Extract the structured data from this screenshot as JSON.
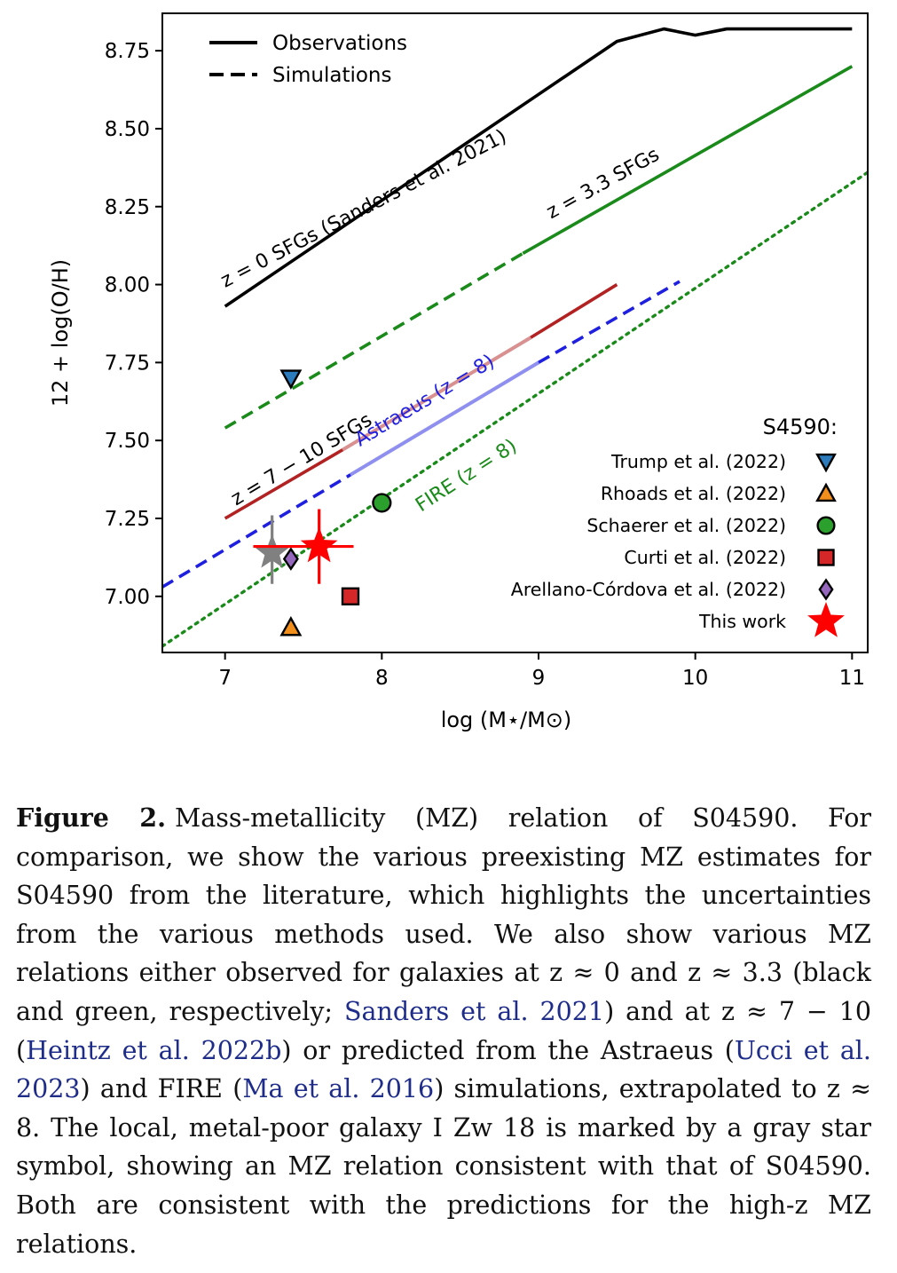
{
  "chart_data": {
    "type": "line",
    "xlabel": "log (M⋆/M⊙)",
    "ylabel": "12 + log(O/H)",
    "xlim": [
      6.6,
      11.1
    ],
    "ylim": [
      6.82,
      8.87
    ],
    "xticks": [
      "7",
      "8",
      "9",
      "10",
      "11"
    ],
    "yticks": [
      "7.00",
      "7.25",
      "7.50",
      "7.75",
      "8.00",
      "8.25",
      "8.50",
      "8.75"
    ],
    "style_legend": [
      {
        "label": "Observations",
        "style": "solid"
      },
      {
        "label": "Simulations",
        "style": "dashed"
      }
    ],
    "series": [
      {
        "name": "z = 0 SFGs (Sanders et al. 2021)",
        "color": "#000000",
        "style": "solid",
        "x": [
          7.0,
          7.5,
          8.0,
          8.5,
          9.0,
          9.5,
          9.8,
          10.0,
          10.2,
          10.4,
          10.6,
          10.8,
          11.0
        ],
        "y": [
          7.93,
          8.1,
          8.27,
          8.44,
          8.61,
          8.78,
          8.82,
          8.8,
          8.82,
          8.82,
          8.82,
          8.82,
          8.82
        ]
      },
      {
        "name": "z = 3.3 SFGs",
        "color": "#1a8a1a",
        "segments": [
          {
            "style": "dashed",
            "x": [
              7.0,
              8.9
            ],
            "y": [
              7.54,
              8.1
            ]
          },
          {
            "style": "solid",
            "x": [
              8.9,
              11.0
            ],
            "y": [
              8.1,
              8.7
            ]
          }
        ]
      },
      {
        "name": "z = 7 − 10 SFGs",
        "color": "#b22222",
        "segments": [
          {
            "style": "solid",
            "x": [
              7.0,
              7.75
            ],
            "y": [
              7.25,
              7.47
            ]
          },
          {
            "style": "faded",
            "x": [
              7.75,
              8.95
            ],
            "y": [
              7.47,
              7.83
            ]
          },
          {
            "style": "solid",
            "x": [
              8.95,
              9.5
            ],
            "y": [
              7.83,
              8.0
            ]
          }
        ]
      },
      {
        "name": "Astraeus (z = 8)",
        "color": "#1f1fe0",
        "segments": [
          {
            "style": "dashed",
            "x": [
              6.6,
              7.8
            ],
            "y": [
              7.03,
              7.39
            ]
          },
          {
            "style": "faded",
            "x": [
              7.8,
              9.0
            ],
            "y": [
              7.39,
              7.75
            ]
          },
          {
            "style": "dashed",
            "x": [
              9.0,
              9.9
            ],
            "y": [
              7.75,
              8.01
            ]
          }
        ]
      },
      {
        "name": "FIRE (z = 8)",
        "color": "#1a8a1a",
        "style": "dotted",
        "x": [
          6.6,
          11.1
        ],
        "y": [
          6.84,
          8.36
        ]
      }
    ],
    "points_legend_title": "S4590:",
    "points": [
      {
        "label": "Trump et al. (2022)",
        "marker": "triangle-down",
        "color": "#2b7bbd",
        "x": 7.42,
        "y": 7.7
      },
      {
        "label": "Rhoads et al. (2022)",
        "marker": "triangle-up",
        "color": "#f28e1c",
        "x": 7.42,
        "y": 6.9
      },
      {
        "label": "Schaerer et al. (2022)",
        "marker": "circle",
        "color": "#2ca02c",
        "x": 8.0,
        "y": 7.3
      },
      {
        "label": "Curti et al. (2022)",
        "marker": "square",
        "color": "#d62728",
        "x": 7.8,
        "y": 7.0
      },
      {
        "label": "Arellano-Córdova et al. (2022)",
        "marker": "diamond",
        "color": "#9467bd",
        "x": 7.42,
        "y": 7.12
      },
      {
        "label": "This work",
        "marker": "star",
        "color": "#ff0000",
        "x": 7.6,
        "y": 7.16,
        "xerr": [
          0.42,
          0.22
        ],
        "yerr": [
          0.12,
          0.12
        ]
      }
    ],
    "extra_points": [
      {
        "label": "",
        "marker": "star",
        "color": "#808080",
        "x": 7.3,
        "y": 7.14,
        "xerr": [
          0.0,
          0.0
        ],
        "yerr": [
          0.1,
          0.12
        ]
      }
    ],
    "annotations": [
      {
        "text": "z = 0 SFGs (Sanders et al. 2021)",
        "color": "#000000",
        "x": 7.0,
        "y": 7.99,
        "angle": -27.5
      },
      {
        "text": "z = 3.3 SFGs",
        "color": "#000000",
        "x": 9.08,
        "y": 8.21,
        "angle": -29
      },
      {
        "text": "z = 7 − 10 SFGs",
        "color": "#000000",
        "x": 7.07,
        "y": 7.29,
        "angle": -31
      },
      {
        "text": "Astraeus (z = 8)",
        "color": "#1f1fe0",
        "x": 7.86,
        "y": 7.48,
        "angle": -31
      },
      {
        "text": "FIRE (z = 8)",
        "color": "#1a8a1a",
        "x": 8.25,
        "y": 7.27,
        "angle": -33
      }
    ]
  },
  "caption": {
    "label": "Figure 2.",
    "segments": [
      {
        "text": "Mass-metallicity (MZ) relation of S04590. For comparison, we show the various preexisting MZ estimates for S04590 from the literature, which highlights the uncertainties from the various methods used. We also show various MZ relations either observed for galaxies at z ≈ 0 and z ≈ 3.3 (black and green, respectively; ",
        "cite": false
      },
      {
        "text": "Sanders et al. 2021",
        "cite": true
      },
      {
        "text": ") and at z ≈ 7 − 10 (",
        "cite": false
      },
      {
        "text": "Heintz et al. 2022b",
        "cite": true
      },
      {
        "text": ") or predicted from the Astraeus (",
        "cite": false
      },
      {
        "text": "Ucci et al. 2023",
        "cite": true
      },
      {
        "text": ") and FIRE (",
        "cite": false
      },
      {
        "text": "Ma et al. 2016",
        "cite": true
      },
      {
        "text": ") simulations, extrapolated to z ≈ 8. The local, metal-poor galaxy I Zw 18 is marked by a gray star symbol, showing an MZ relation consistent with that of S04590. Both are consistent with the predictions for the high-z MZ relations.",
        "cite": false
      }
    ]
  }
}
